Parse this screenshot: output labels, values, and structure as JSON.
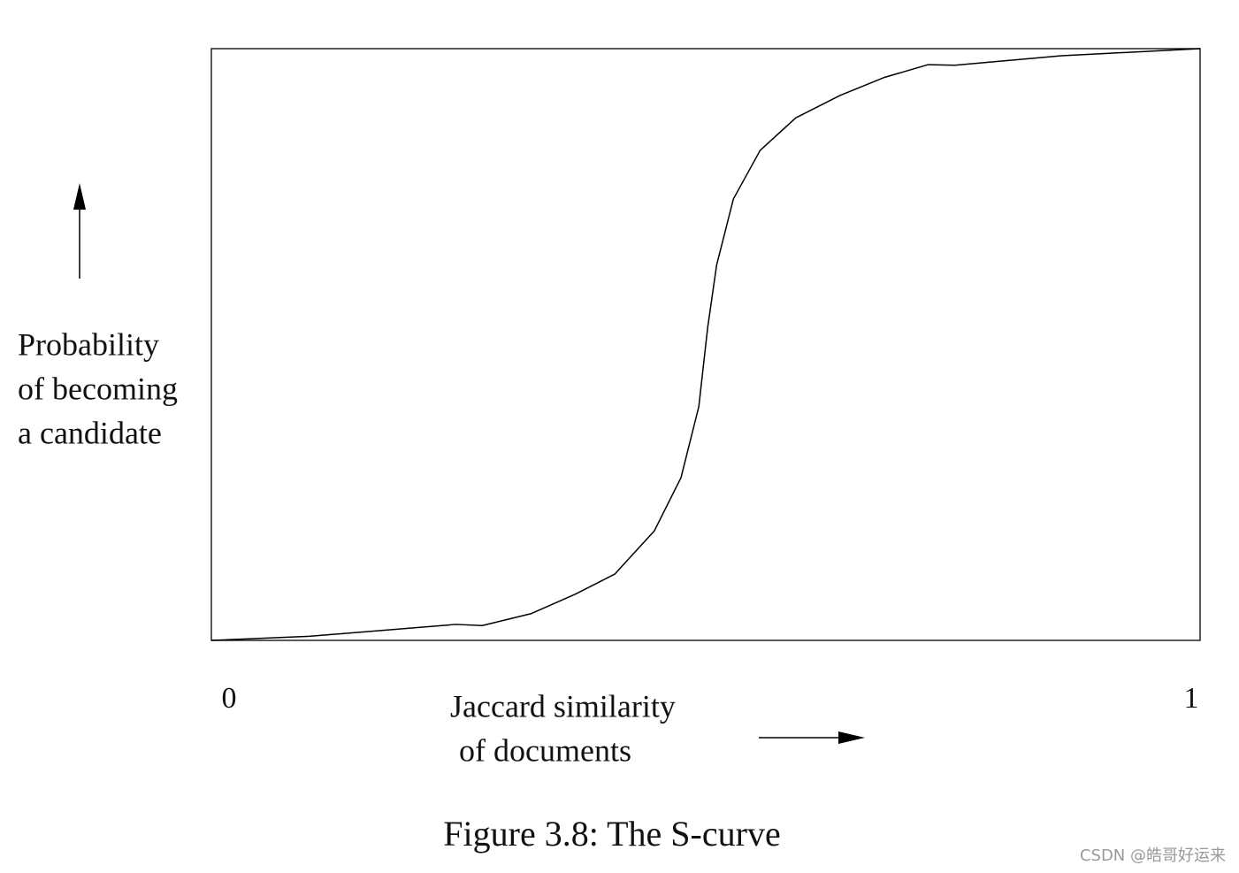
{
  "chart_data": {
    "type": "line",
    "title": "Figure 3.8: The S-curve",
    "xlabel": [
      "Jaccard similarity",
      "of documents"
    ],
    "ylabel": [
      "Probability",
      "of becoming",
      "a candidate"
    ],
    "x": [
      0,
      0.099,
      0.189,
      0.247,
      0.274,
      0.323,
      0.368,
      0.408,
      0.448,
      0.475,
      0.493,
      0.502,
      0.511,
      0.528,
      0.555,
      0.591,
      0.636,
      0.68,
      0.725,
      0.752,
      0.86,
      1
    ],
    "series": [
      {
        "color": "#000000",
        "values": [
          0,
          0.007,
          0.019,
          0.027,
          0.025,
          0.045,
          0.078,
          0.112,
          0.185,
          0.275,
          0.395,
          0.529,
          0.634,
          0.746,
          0.828,
          0.883,
          0.921,
          0.951,
          0.973,
          0.972,
          0.988,
          1
        ]
      }
    ],
    "xlim": [
      0,
      1
    ],
    "ylim": [
      0,
      1
    ],
    "xticks": [
      0,
      1
    ],
    "watermark": "CSDN @皓哥好运来"
  }
}
